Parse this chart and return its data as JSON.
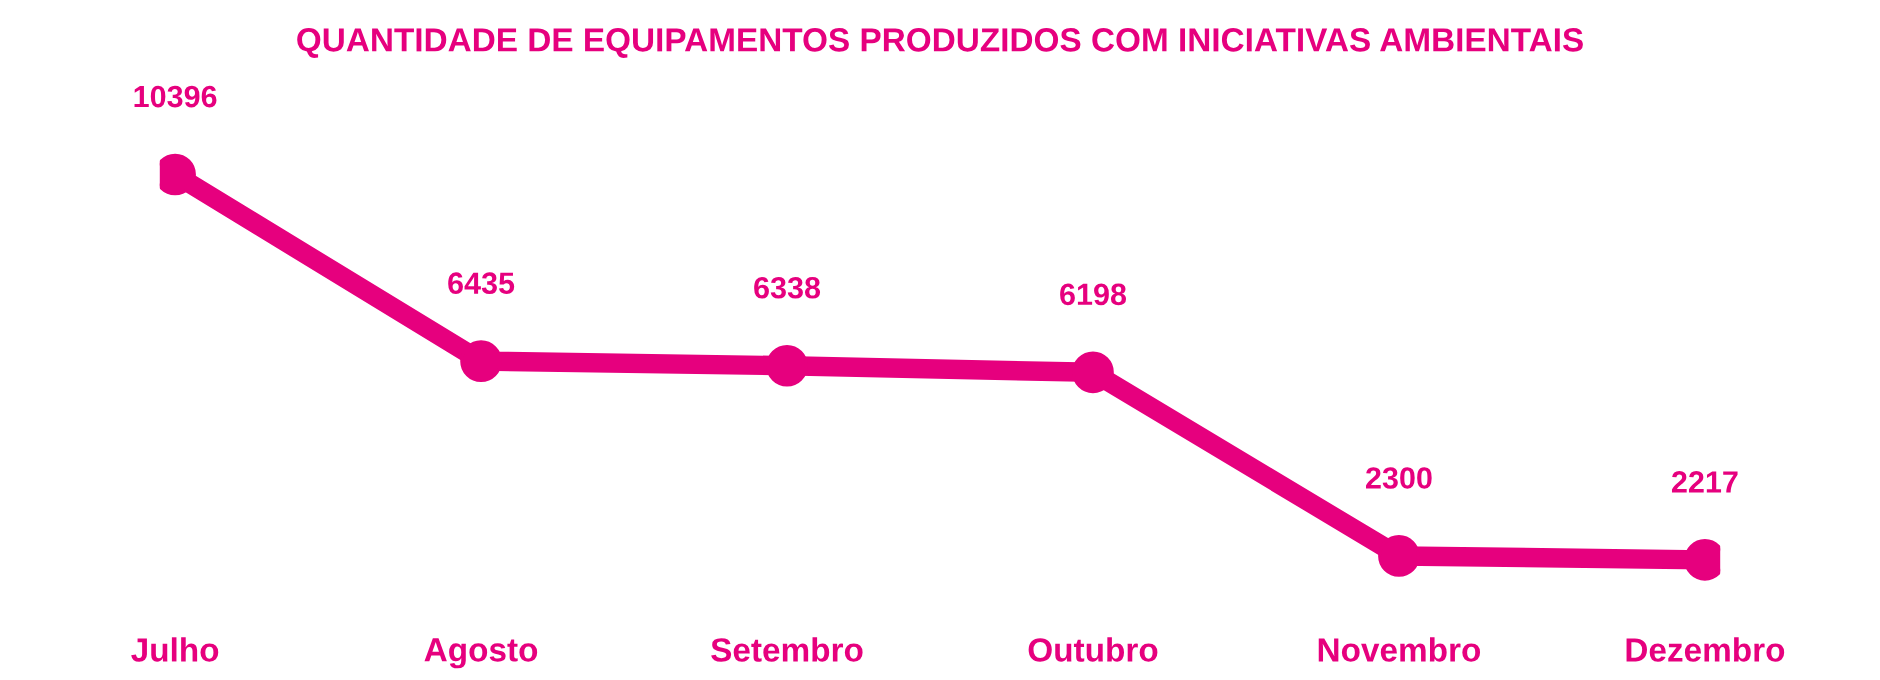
{
  "chart_data": {
    "type": "line",
    "title": "QUANTIDADE DE EQUIPAMENTOS PRODUZIDOS COM INICIATIVAS AMBIENTAIS",
    "categories": [
      "Julho",
      "Agosto",
      "Setembro",
      "Outubro",
      "Novembro",
      "Dezembro"
    ],
    "series": [
      {
        "color": "#e6007e",
        "values": [
          10396,
          6435,
          6338,
          6198,
          2300,
          2217
        ]
      }
    ],
    "data_labels": true,
    "marker": "circle",
    "line_style": "solid",
    "grid": false,
    "legend": false
  }
}
